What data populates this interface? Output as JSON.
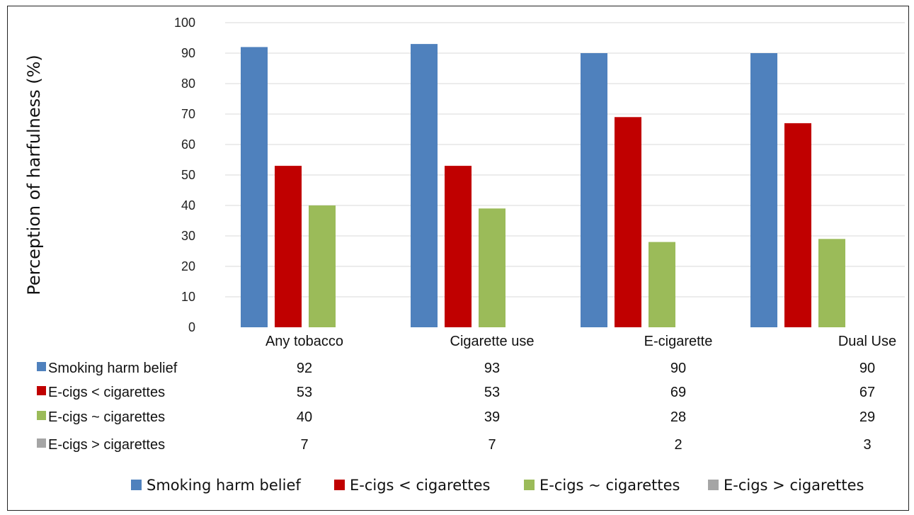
{
  "chart_data": {
    "type": "bar",
    "ylabel": "Perception of harfulness (%)",
    "xlabel": "",
    "ylim": [
      0,
      100
    ],
    "yticks": [
      0,
      10,
      20,
      30,
      40,
      50,
      60,
      70,
      80,
      90,
      100
    ],
    "grid": true,
    "legend_position": "bottom",
    "categories": [
      "Any tobacco",
      "Cigarette use",
      "E-cigarette",
      "Dual Use"
    ],
    "series": [
      {
        "name": "Smoking harm belief",
        "color": "#4f81bd",
        "values": [
          92,
          93,
          90,
          90
        ]
      },
      {
        "name": "E-cigs < cigarettes",
        "color": "#c00000",
        "values": [
          53,
          53,
          69,
          67
        ]
      },
      {
        "name": "E-cigs ~ cigarettes",
        "color": "#9bbb59",
        "values": [
          40,
          39,
          28,
          29
        ]
      },
      {
        "name": "E-cigs > cigarettes",
        "color": "#a5a5a5",
        "values": [
          7,
          7,
          2,
          3
        ]
      }
    ],
    "data_table": true
  }
}
